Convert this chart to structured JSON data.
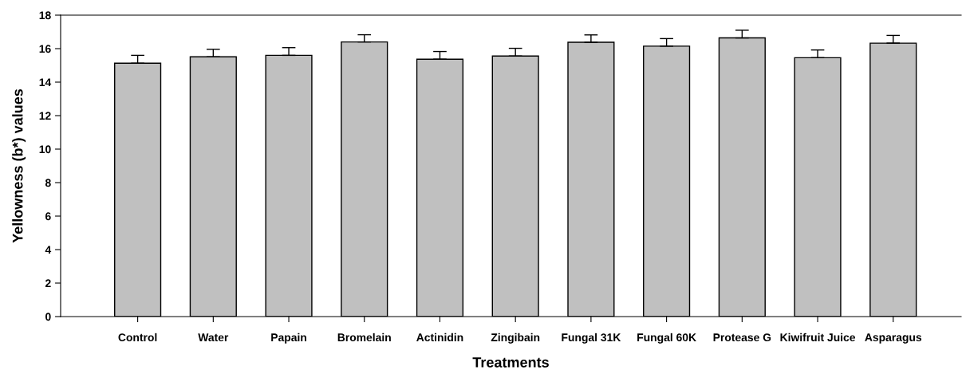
{
  "chart_data": {
    "type": "bar",
    "xlabel": "Treatments",
    "ylabel": "Yellowness (b*) values",
    "categories": [
      "Control",
      "Water",
      "Papain",
      "Bromelain",
      "Actinidin",
      "Zingibain",
      "Fungal 31K",
      "Fungal 60K",
      "Protease G",
      "Kiwifruit Juice",
      "Asparagus"
    ],
    "values": [
      15.13,
      15.51,
      15.6,
      16.4,
      15.37,
      15.56,
      16.38,
      16.15,
      16.64,
      15.46,
      16.33
    ],
    "errors": [
      [
        15.13,
        15.6
      ],
      [
        15.51,
        15.96
      ],
      [
        15.6,
        16.06
      ],
      [
        16.4,
        16.83
      ],
      [
        15.37,
        15.83
      ],
      [
        15.56,
        16.02
      ],
      [
        16.38,
        16.82
      ],
      [
        16.15,
        16.6
      ],
      [
        16.64,
        17.1
      ],
      [
        15.46,
        15.92
      ],
      [
        16.33,
        16.79
      ]
    ],
    "color": "#c0c0c0",
    "ylim": [
      0,
      18
    ],
    "yticks": [
      0,
      2,
      4,
      6,
      8,
      10,
      12,
      14,
      16,
      18
    ],
    "grid": false,
    "legend": false
  }
}
